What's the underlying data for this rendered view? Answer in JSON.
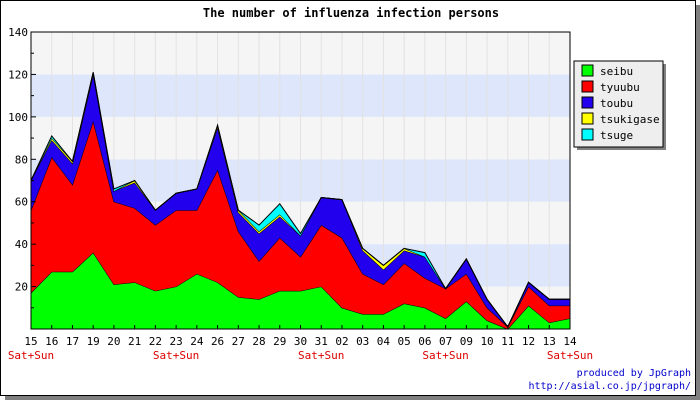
{
  "chart_data": {
    "type": "area",
    "stacked": true,
    "title": "The number of influenza infection persons",
    "categories": [
      "15",
      "16",
      "17",
      "19",
      "20",
      "21",
      "22",
      "23",
      "24",
      "26",
      "27",
      "28",
      "29",
      "30",
      "31",
      "02",
      "03",
      "04",
      "05",
      "06",
      "07",
      "09",
      "10",
      "11",
      "12",
      "13",
      "14"
    ],
    "weekend_labels": [
      "Sat+Sun",
      "",
      "",
      "",
      "",
      "",
      "",
      "Sat+Sun",
      "",
      "",
      "",
      "",
      "",
      "",
      "Sat+Sun",
      "",
      "",
      "",
      "",
      "",
      "Sat+Sun",
      "",
      "",
      "",
      "",
      "",
      "Sat+Sun"
    ],
    "ylim": [
      0,
      140
    ],
    "yticks": [
      20,
      40,
      60,
      80,
      100,
      120,
      140
    ],
    "grid": true,
    "legend_position": "right",
    "series": [
      {
        "name": "seibu",
        "color": "#00ff00",
        "values": [
          17,
          27,
          27,
          36,
          21,
          22,
          18,
          20,
          26,
          22,
          15,
          14,
          18,
          18,
          20,
          10,
          7,
          7,
          12,
          10,
          5,
          13,
          4,
          0,
          11,
          3,
          5
        ]
      },
      {
        "name": "tyuubu",
        "color": "#ff0000",
        "values": [
          39,
          54,
          41,
          62,
          39,
          35,
          31,
          36,
          30,
          53,
          31,
          18,
          25,
          16,
          29,
          33,
          19,
          14,
          19,
          14,
          14,
          13,
          6,
          1,
          9,
          8,
          6
        ]
      },
      {
        "name": "toubu",
        "color": "#2200ee",
        "values": [
          14,
          8,
          10,
          22,
          5,
          12,
          7,
          8,
          10,
          20,
          9,
          13,
          10,
          10,
          13,
          18,
          11,
          7,
          6,
          10,
          0,
          7,
          4,
          0,
          2,
          3,
          3
        ]
      },
      {
        "name": "tsukigase",
        "color": "#ffff00",
        "values": [
          0,
          1,
          1,
          1,
          0,
          1,
          0,
          0,
          0,
          1,
          1,
          1,
          1,
          0,
          0,
          0,
          1,
          2,
          1,
          0,
          0,
          0,
          0,
          0,
          0,
          0,
          0
        ]
      },
      {
        "name": "tsuge",
        "color": "#00ffff",
        "values": [
          0,
          1,
          0,
          0,
          1,
          0,
          0,
          0,
          0,
          0,
          0,
          3,
          5,
          1,
          0,
          0,
          0,
          0,
          0,
          2,
          0,
          0,
          0,
          0,
          0,
          0,
          0
        ]
      }
    ]
  },
  "credits": {
    "line1": "produced by JpGraph",
    "line2": "http://asial.co.jp/jpgraph/"
  }
}
